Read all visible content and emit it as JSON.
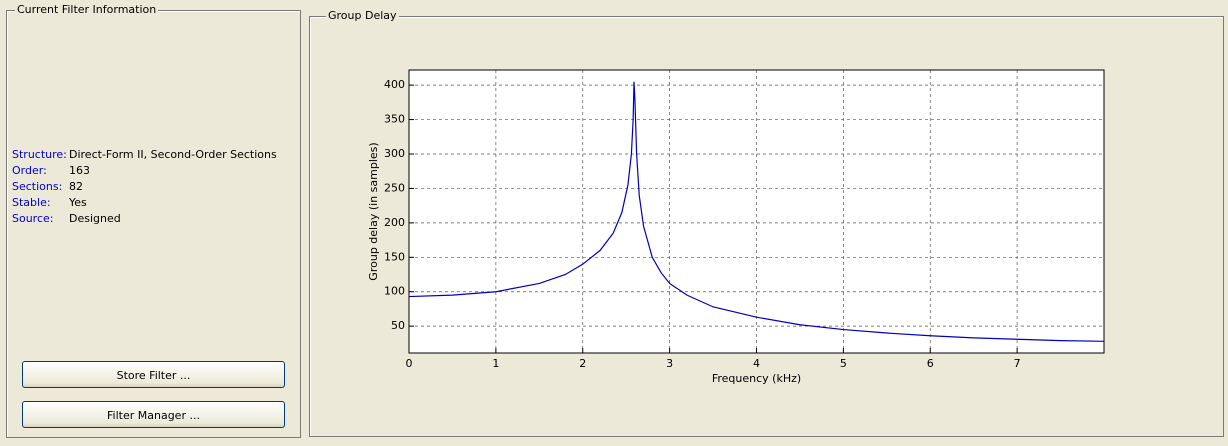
{
  "left_panel": {
    "title": "Current Filter Information",
    "fields": [
      {
        "label": "Structure:",
        "value": "Direct-Form II, Second-Order Sections"
      },
      {
        "label": "Order:",
        "value": "163"
      },
      {
        "label": "Sections:",
        "value": "82"
      },
      {
        "label": "Stable:",
        "value": "Yes"
      },
      {
        "label": "Source:",
        "value": "Designed"
      }
    ],
    "buttons": [
      "Store Filter ...",
      "Filter Manager ..."
    ]
  },
  "right_panel": {
    "title": "Group Delay"
  },
  "chart_data": {
    "type": "line",
    "xlabel": "Frequency (kHz)",
    "ylabel": "Group delay (in samples)",
    "x": [
      0,
      0.5,
      1,
      1.5,
      1.8,
      2,
      2.2,
      2.35,
      2.45,
      2.52,
      2.56,
      2.58,
      2.59,
      2.6,
      2.62,
      2.65,
      2.7,
      2.8,
      2.9,
      3,
      3.2,
      3.5,
      4,
      4.5,
      5,
      5.5,
      6,
      6.5,
      7,
      7.5,
      8
    ],
    "values": [
      93,
      95,
      100,
      112,
      125,
      140,
      160,
      185,
      215,
      255,
      300,
      350,
      405,
      380,
      300,
      240,
      195,
      150,
      128,
      112,
      95,
      78,
      63,
      52,
      45,
      40,
      36,
      33,
      31,
      29,
      28
    ],
    "color": "#0000c0",
    "xlim": [
      0,
      8
    ],
    "xticks": [
      0,
      1,
      2,
      3,
      4,
      5,
      6,
      7
    ],
    "ylim": [
      11,
      422
    ],
    "yticks": [
      50,
      100,
      150,
      200,
      250,
      300,
      350,
      400
    ],
    "grid": true
  }
}
